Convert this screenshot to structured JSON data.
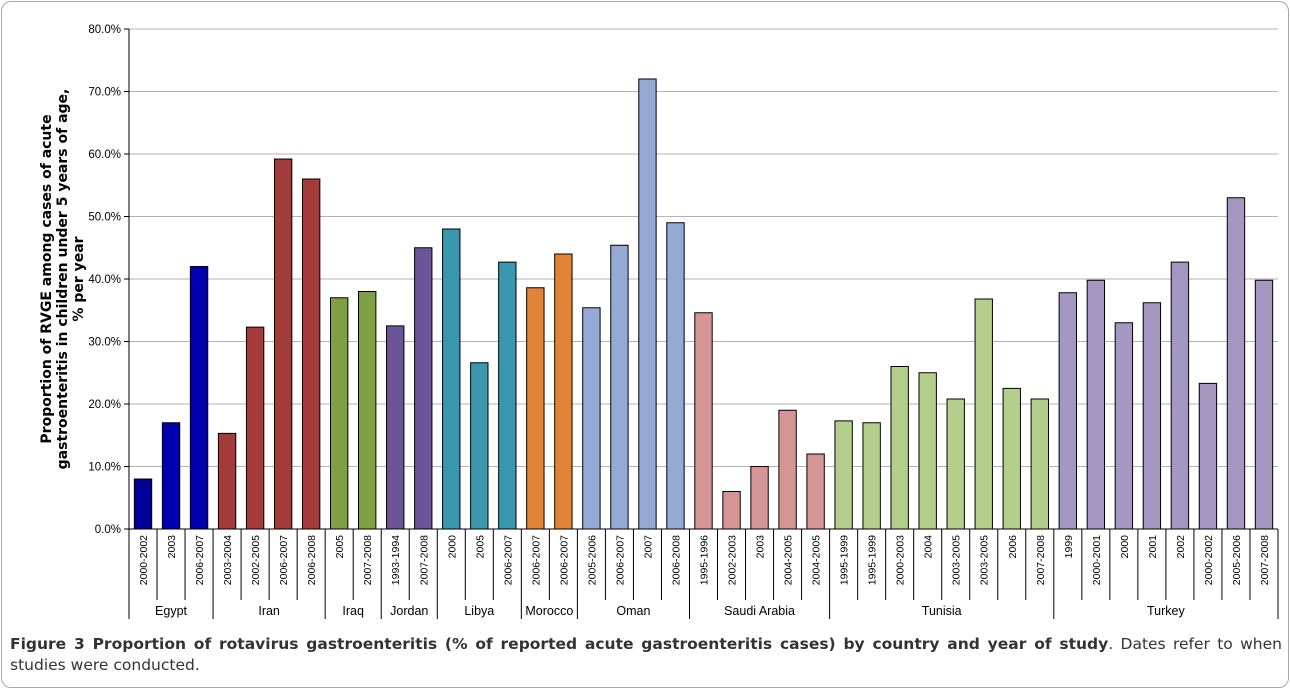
{
  "chart_data": {
    "type": "bar",
    "ylabel": "Proportion of RVGE among cases of acute gastroenteritis in children under 5 years of age, % per year",
    "ylabel_lines": [
      "Proportion of RVGE among cases of acute",
      "gastroenteritis in children under 5 years of age,",
      "% per year"
    ],
    "ylim": [
      0,
      80
    ],
    "yticks": [
      "0.0%",
      "10.0%",
      "20.0%",
      "30.0%",
      "40.0%",
      "50.0%",
      "60.0%",
      "70.0%",
      "80.0%"
    ],
    "grid": true,
    "bars": [
      {
        "country": "Egypt",
        "year": "2000-2002",
        "value": 8.0,
        "color": "#000099"
      },
      {
        "country": "Egypt",
        "year": "2003",
        "value": 17.0,
        "color": "#0000b0"
      },
      {
        "country": "Egypt",
        "year": "2006-2007",
        "value": 42.0,
        "color": "#0000b0"
      },
      {
        "country": "Iran",
        "year": "2003-2004",
        "value": 15.3,
        "color": "#a43b3b"
      },
      {
        "country": "Iran",
        "year": "2002-2005",
        "value": 32.3,
        "color": "#a43b3b"
      },
      {
        "country": "Iran",
        "year": "2006-2007",
        "value": 59.2,
        "color": "#a43b3b"
      },
      {
        "country": "Iran",
        "year": "2006-2008",
        "value": 56.0,
        "color": "#a43b3b"
      },
      {
        "country": "Iraq",
        "year": "2005",
        "value": 37.0,
        "color": "#7f9f45"
      },
      {
        "country": "Iraq",
        "year": "2007-2008",
        "value": 38.0,
        "color": "#7f9f45"
      },
      {
        "country": "Jordan",
        "year": "1993-1994",
        "value": 32.5,
        "color": "#6b5597"
      },
      {
        "country": "Jordan",
        "year": "2007-2008",
        "value": 45.0,
        "color": "#6b5597"
      },
      {
        "country": "Libya",
        "year": "2000",
        "value": 48.0,
        "color": "#3a97ae"
      },
      {
        "country": "Libya",
        "year": "2005",
        "value": 26.6,
        "color": "#3a97ae"
      },
      {
        "country": "Libya",
        "year": "2006-2007",
        "value": 42.7,
        "color": "#3a97ae"
      },
      {
        "country": "Morocco",
        "year": "2006-2007",
        "value": 38.6,
        "color": "#e08538"
      },
      {
        "country": "Morocco",
        "year": "2006-2007",
        "value": 44.0,
        "color": "#e08538"
      },
      {
        "country": "Oman",
        "year": "2005-2006",
        "value": 35.4,
        "color": "#94aad4"
      },
      {
        "country": "Oman",
        "year": "2006-2007",
        "value": 45.4,
        "color": "#94aad4"
      },
      {
        "country": "Oman",
        "year": "2007",
        "value": 72.0,
        "color": "#94aad4"
      },
      {
        "country": "Oman",
        "year": "2006-2008",
        "value": 49.0,
        "color": "#94aad4"
      },
      {
        "country": "Saudi Arabia",
        "year": "1995-1996",
        "value": 34.6,
        "color": "#d69595"
      },
      {
        "country": "Saudi Arabia",
        "year": "2002-2003",
        "value": 6.0,
        "color": "#d69595"
      },
      {
        "country": "Saudi Arabia",
        "year": "2003",
        "value": 10.0,
        "color": "#d69595"
      },
      {
        "country": "Saudi Arabia",
        "year": "2004-2005",
        "value": 19.0,
        "color": "#d69595"
      },
      {
        "country": "Saudi Arabia",
        "year": "2004-2005",
        "value": 12.0,
        "color": "#d69595"
      },
      {
        "country": "Tunisia",
        "year": "1995-1999",
        "value": 17.3,
        "color": "#b4cf8c"
      },
      {
        "country": "Tunisia",
        "year": "1995-1999",
        "value": 17.0,
        "color": "#b4cf8c"
      },
      {
        "country": "Tunisia",
        "year": "2000-2003",
        "value": 26.0,
        "color": "#b4cf8c"
      },
      {
        "country": "Tunisia",
        "year": "2004",
        "value": 25.0,
        "color": "#b4cf8c"
      },
      {
        "country": "Tunisia",
        "year": "2003-2005",
        "value": 20.8,
        "color": "#b4cf8c"
      },
      {
        "country": "Tunisia",
        "year": "2003-2005",
        "value": 36.8,
        "color": "#b4cf8c"
      },
      {
        "country": "Tunisia",
        "year": "2006",
        "value": 22.5,
        "color": "#b4cf8c"
      },
      {
        "country": "Tunisia",
        "year": "2007-2008",
        "value": 20.8,
        "color": "#b4cf8c"
      },
      {
        "country": "Turkey",
        "year": "1999",
        "value": 37.8,
        "color": "#a498c2"
      },
      {
        "country": "Turkey",
        "year": "2000-2001",
        "value": 39.8,
        "color": "#a498c2"
      },
      {
        "country": "Turkey",
        "year": "2000",
        "value": 33.0,
        "color": "#a498c2"
      },
      {
        "country": "Turkey",
        "year": "2001",
        "value": 36.2,
        "color": "#a498c2"
      },
      {
        "country": "Turkey",
        "year": "2002",
        "value": 42.7,
        "color": "#a498c2"
      },
      {
        "country": "Turkey",
        "year": "2000-2002",
        "value": 23.3,
        "color": "#a498c2"
      },
      {
        "country": "Turkey",
        "year": "2005-2006",
        "value": 53.0,
        "color": "#a498c2"
      },
      {
        "country": "Turkey",
        "year": "2007-2008",
        "value": 39.8,
        "color": "#a498c2"
      }
    ],
    "groups": [
      {
        "name": "Egypt",
        "start": 0,
        "end": 2
      },
      {
        "name": "Iran",
        "start": 3,
        "end": 6
      },
      {
        "name": "Iraq",
        "start": 7,
        "end": 8
      },
      {
        "name": "Jordan",
        "start": 9,
        "end": 10
      },
      {
        "name": "Libya",
        "start": 11,
        "end": 13
      },
      {
        "name": "Morocco",
        "start": 14,
        "end": 15
      },
      {
        "name": "Oman",
        "start": 16,
        "end": 19
      },
      {
        "name": "Saudi Arabia",
        "start": 20,
        "end": 24
      },
      {
        "name": "Tunisia",
        "start": 25,
        "end": 32
      },
      {
        "name": "Turkey",
        "start": 33,
        "end": 40
      }
    ]
  },
  "caption": {
    "bold": "Figure 3 Proportion of rotavirus gastroenteritis (% of reported acute gastroenteritis cases) by country and year of study",
    "rest": ". Dates refer to when studies were conducted."
  }
}
